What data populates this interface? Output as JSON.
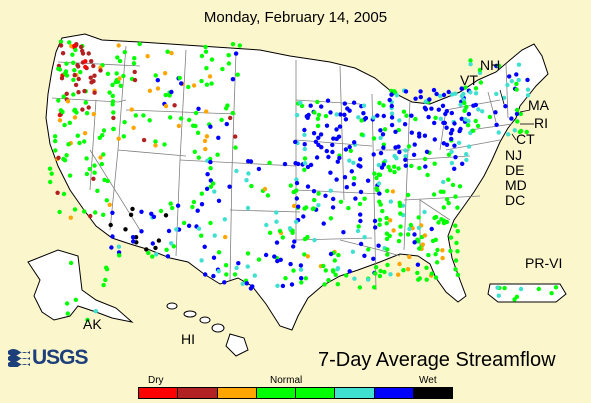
{
  "title": "Monday, February 14, 2005",
  "caption": "7-Day Average Streamflow",
  "logo_text": "USGS",
  "state_labels": {
    "nh": "NH",
    "vt": "VT",
    "ma": "MA",
    "ri": "RI",
    "ct": "CT",
    "nj": "NJ",
    "de": "DE",
    "md": "MD",
    "dc": "DC",
    "prvi": "PR-VI",
    "ak": "AK",
    "hi": "HI"
  },
  "legend": {
    "dry_label": "Dry",
    "normal_label": "Normal",
    "wet_label": "Wet",
    "classes": [
      "#ff0000",
      "#b22222",
      "#ffa500",
      "#00ff00",
      "#00ff00",
      "#40e0d0",
      "#0000ff",
      "#000000"
    ]
  },
  "colors": {
    "background": "#fcf6cc",
    "land": "#ffffff",
    "border": "#808080",
    "accent": "#1d3f7a"
  }
}
